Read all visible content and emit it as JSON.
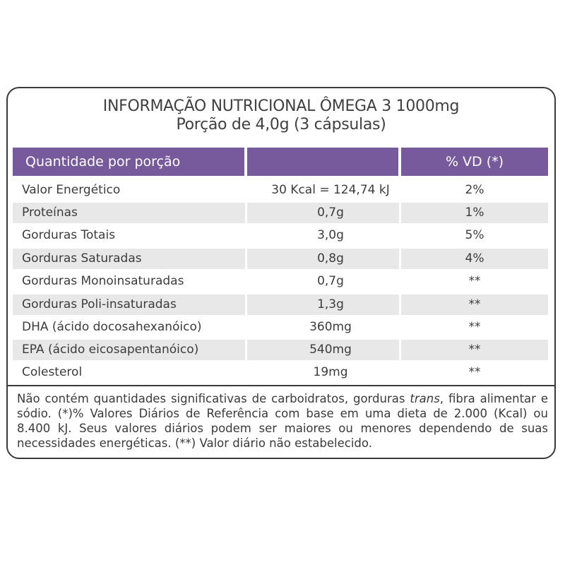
{
  "title": {
    "line1": "INFORMAÇÃO NUTRICIONAL ÔMEGA 3 1000mg",
    "line2": "Porção de 4,0g (3 cápsulas)"
  },
  "header": {
    "col1": "Quantidade por porção",
    "col2": "",
    "col3": "% VD (*)"
  },
  "rows": [
    {
      "name": "Valor Energético",
      "value": "30 Kcal = 124,74 kJ",
      "vd": "2%"
    },
    {
      "name": "Proteínas",
      "value": "0,7g",
      "vd": "1%"
    },
    {
      "name": "Gorduras Totais",
      "value": "3,0g",
      "vd": "5%"
    },
    {
      "name": "Gorduras Saturadas",
      "value": "0,8g",
      "vd": "4%"
    },
    {
      "name": "Gorduras Monoinsaturadas",
      "value": "0,7g",
      "vd": "**"
    },
    {
      "name": "Gorduras Poli-insaturadas",
      "value": "1,3g",
      "vd": "**"
    },
    {
      "name": "DHA (ácido docosahexanóico)",
      "value": "360mg",
      "vd": "**"
    },
    {
      "name": "EPA (ácido eicosapentanóico)",
      "value": "540mg",
      "vd": "**"
    },
    {
      "name": "Colesterol",
      "value": "19mg",
      "vd": "**"
    }
  ],
  "footnote": {
    "part1": "Não contém quantidades significativas de carboidratos, gorduras ",
    "italic": "trans",
    "part2": ", fibra alimentar e sódio. (*)% Valores Diários de Referência com base em uma dieta de 2.000 (Kcal) ou 8.400 kJ. Seus valores diários podem ser maiores ou menores dependendo de suas necessidades energéticas. (**) Valor diário não estabelecido."
  },
  "colors": {
    "header_bg": "#775a9c",
    "row_shade": "#e8e8e8",
    "border": "#3a3a3a"
  }
}
